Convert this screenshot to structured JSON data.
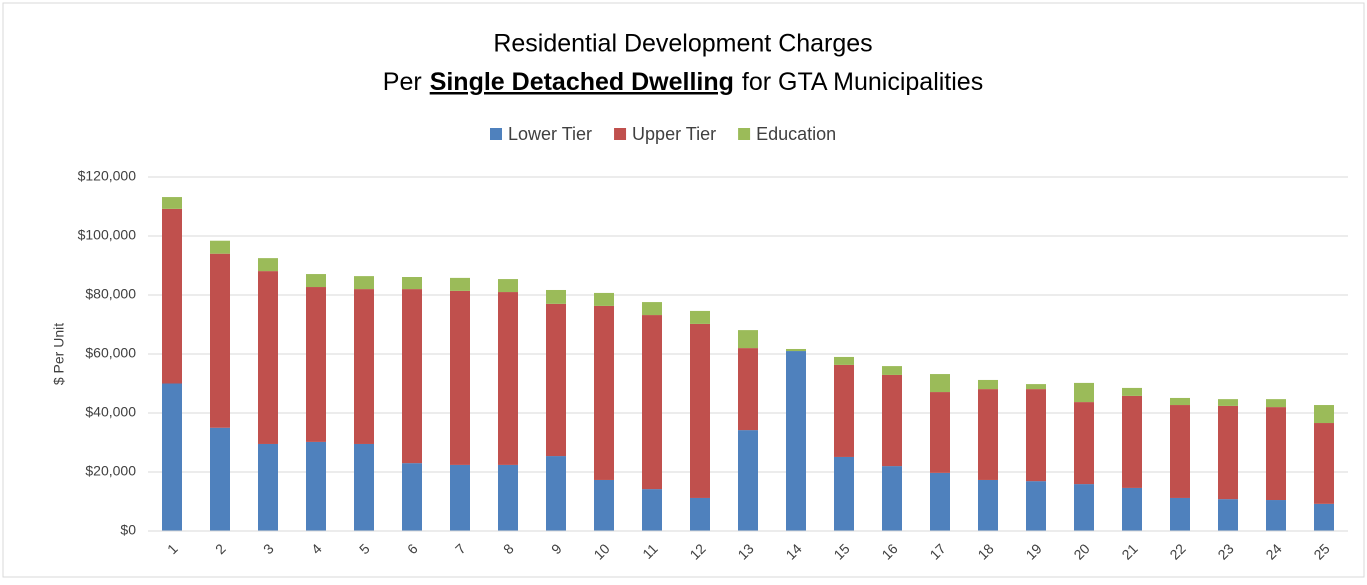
{
  "chart_data": {
    "type": "stacked_bar",
    "title": {
      "line1": "Residential Development Charges",
      "line2": [
        "Per",
        "Single Detached Dwelling",
        "for GTA Municipalities"
      ]
    },
    "ylabel": "$ Per Unit",
    "categories": [
      "1",
      "2",
      "3",
      "4",
      "5",
      "6",
      "7",
      "8",
      "9",
      "10",
      "11",
      "12",
      "13",
      "14",
      "15",
      "16",
      "17",
      "18",
      "19",
      "20",
      "21",
      "22",
      "23",
      "24",
      "25"
    ],
    "series": [
      {
        "name": "Lower Tier",
        "color": "#4f81bd",
        "values": [
          50000,
          35000,
          29500,
          30200,
          29500,
          23000,
          22400,
          22400,
          25400,
          17300,
          14200,
          11200,
          34200,
          61000,
          25100,
          22000,
          19700,
          17300,
          16900,
          15900,
          14600,
          11200,
          10800,
          10500,
          9200
        ]
      },
      {
        "name": "Upper Tier",
        "color": "#c0504d",
        "values": [
          59200,
          59000,
          58600,
          52500,
          52500,
          59000,
          59000,
          58600,
          51600,
          59000,
          59000,
          59000,
          27800,
          0,
          31200,
          30900,
          27400,
          30800,
          31200,
          27800,
          31200,
          31500,
          31600,
          31500,
          27400
        ]
      },
      {
        "name": "Education",
        "color": "#9bbb59",
        "values": [
          4000,
          4400,
          4400,
          4400,
          4400,
          4100,
          4400,
          4400,
          4700,
          4400,
          4400,
          4400,
          6100,
          700,
          2700,
          3000,
          6100,
          3100,
          1700,
          6500,
          2700,
          2400,
          2300,
          2700,
          6100
        ]
      }
    ],
    "ylim": [
      0,
      120000
    ],
    "yticks": [
      {
        "value": 0,
        "label": "$0"
      },
      {
        "value": 20000,
        "label": "$20,000"
      },
      {
        "value": 40000,
        "label": "$40,000"
      },
      {
        "value": 60000,
        "label": "$60,000"
      },
      {
        "value": 80000,
        "label": "$80,000"
      },
      {
        "value": 100000,
        "label": "$100,000"
      },
      {
        "value": 120000,
        "label": "$120,000"
      }
    ],
    "grid": true,
    "legend": "top"
  }
}
